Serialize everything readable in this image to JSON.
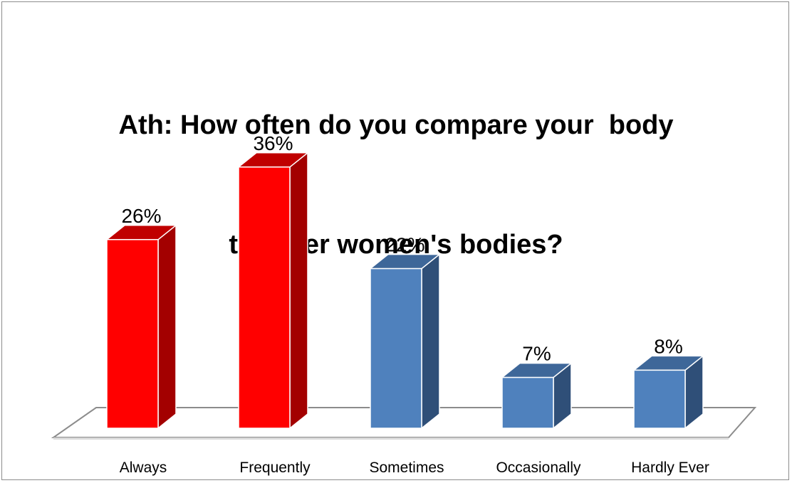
{
  "chart_data": {
    "type": "bar",
    "title": "Ath: How often do you compare your  body to other women's bodies?",
    "title_lines": [
      "Ath: How often do you compare your  body",
      "to other women's bodies?"
    ],
    "categories": [
      "Always",
      "Frequently",
      "Sometimes",
      "Occasionally",
      "Hardly Ever"
    ],
    "values": [
      26,
      36,
      22,
      7,
      8
    ],
    "value_labels": [
      "26%",
      "36%",
      "22%",
      "7%",
      "8%"
    ],
    "unit": "%",
    "ylim": [
      0,
      40
    ],
    "grid": false,
    "legend": "none",
    "colors": {
      "red_front": "#ff0000",
      "red_side": "#a30000",
      "red_top": "#c00000",
      "blue_front": "#4f81bd",
      "blue_side": "#2f4f78",
      "blue_top": "#3e6799"
    },
    "bar_color_keys": [
      "red",
      "red",
      "blue",
      "blue",
      "blue"
    ]
  }
}
